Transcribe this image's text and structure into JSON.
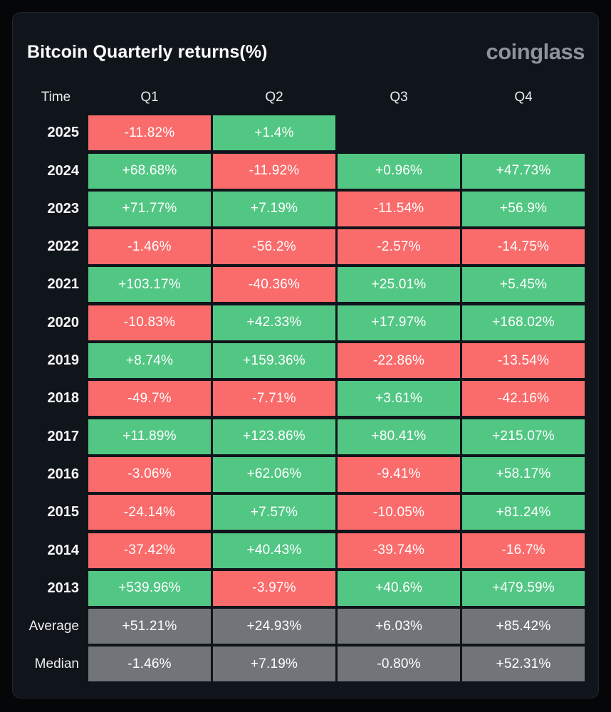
{
  "page": {
    "title": "Bitcoin Quarterly returns(%)",
    "brand": "coinglass"
  },
  "colors": {
    "positive": "#52c784",
    "negative": "#fa6b6b",
    "summary": "#717478",
    "card_bg": "#10141b",
    "page_bg": "#050608"
  },
  "chart_data": {
    "type": "heatmap",
    "title": "Bitcoin Quarterly returns(%)",
    "unit": "%",
    "columns": [
      "Time",
      "Q1",
      "Q2",
      "Q3",
      "Q4"
    ],
    "rows": [
      {
        "label": "2025",
        "summary": false,
        "values": [
          "-11.82%",
          "+1.4%",
          null,
          null
        ]
      },
      {
        "label": "2024",
        "summary": false,
        "values": [
          "+68.68%",
          "-11.92%",
          "+0.96%",
          "+47.73%"
        ]
      },
      {
        "label": "2023",
        "summary": false,
        "values": [
          "+71.77%",
          "+7.19%",
          "-11.54%",
          "+56.9%"
        ]
      },
      {
        "label": "2022",
        "summary": false,
        "values": [
          "-1.46%",
          "-56.2%",
          "-2.57%",
          "-14.75%"
        ]
      },
      {
        "label": "2021",
        "summary": false,
        "values": [
          "+103.17%",
          "-40.36%",
          "+25.01%",
          "+5.45%"
        ]
      },
      {
        "label": "2020",
        "summary": false,
        "values": [
          "-10.83%",
          "+42.33%",
          "+17.97%",
          "+168.02%"
        ]
      },
      {
        "label": "2019",
        "summary": false,
        "values": [
          "+8.74%",
          "+159.36%",
          "-22.86%",
          "-13.54%"
        ]
      },
      {
        "label": "2018",
        "summary": false,
        "values": [
          "-49.7%",
          "-7.71%",
          "+3.61%",
          "-42.16%"
        ]
      },
      {
        "label": "2017",
        "summary": false,
        "values": [
          "+11.89%",
          "+123.86%",
          "+80.41%",
          "+215.07%"
        ]
      },
      {
        "label": "2016",
        "summary": false,
        "values": [
          "-3.06%",
          "+62.06%",
          "-9.41%",
          "+58.17%"
        ]
      },
      {
        "label": "2015",
        "summary": false,
        "values": [
          "-24.14%",
          "+7.57%",
          "-10.05%",
          "+81.24%"
        ]
      },
      {
        "label": "2014",
        "summary": false,
        "values": [
          "-37.42%",
          "+40.43%",
          "-39.74%",
          "-16.7%"
        ]
      },
      {
        "label": "2013",
        "summary": false,
        "values": [
          "+539.96%",
          "-3.97%",
          "+40.6%",
          "+479.59%"
        ]
      },
      {
        "label": "Average",
        "summary": true,
        "values": [
          "+51.21%",
          "+24.93%",
          "+6.03%",
          "+85.42%"
        ]
      },
      {
        "label": "Median",
        "summary": true,
        "values": [
          "-1.46%",
          "+7.19%",
          "-0.80%",
          "+52.31%"
        ]
      }
    ],
    "legend": "green = positive quarterly return, red = negative quarterly return, gray = summary statistic"
  }
}
